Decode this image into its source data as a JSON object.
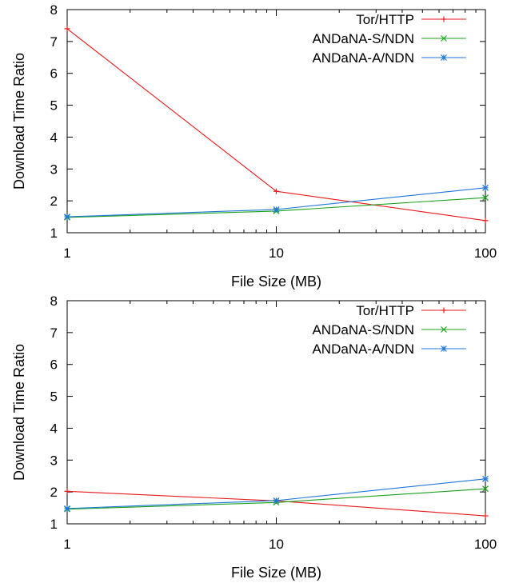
{
  "chart_data": [
    {
      "type": "line",
      "title": "",
      "xlabel": "File Size (MB)",
      "ylabel": "Download Time Ratio",
      "xscale": "log",
      "xlim": [
        1,
        100
      ],
      "ylim": [
        1,
        8
      ],
      "xticks": [
        1,
        10,
        100
      ],
      "xtick_labels": [
        "1",
        "10",
        "100"
      ],
      "yticks": [
        1,
        2,
        3,
        4,
        5,
        6,
        7,
        8
      ],
      "ytick_labels": [
        "1",
        "2",
        "3",
        "4",
        "5",
        "6",
        "7",
        "8"
      ],
      "grid": false,
      "legend_position": "top-right",
      "x": [
        1,
        10,
        100
      ],
      "series": [
        {
          "name": "Tor/HTTP",
          "values": [
            7.4,
            2.3,
            1.38
          ],
          "color": "#e8191b",
          "marker": "plus"
        },
        {
          "name": "ANDaNA-S/NDN",
          "values": [
            1.48,
            1.68,
            2.1
          ],
          "color": "#1aa31a",
          "marker": "cross"
        },
        {
          "name": "ANDaNA-A/NDN",
          "values": [
            1.5,
            1.73,
            2.41
          ],
          "color": "#1f77d9",
          "marker": "star"
        }
      ]
    },
    {
      "type": "line",
      "title": "",
      "xlabel": "File Size (MB)",
      "ylabel": "Download Time Ratio",
      "xscale": "log",
      "xlim": [
        1,
        100
      ],
      "ylim": [
        1,
        8
      ],
      "xticks": [
        1,
        10,
        100
      ],
      "xtick_labels": [
        "1",
        "10",
        "100"
      ],
      "yticks": [
        1,
        2,
        3,
        4,
        5,
        6,
        7,
        8
      ],
      "ytick_labels": [
        "1",
        "2",
        "3",
        "4",
        "5",
        "6",
        "7",
        "8"
      ],
      "grid": false,
      "legend_position": "top-right",
      "x": [
        1,
        10,
        100
      ],
      "series": [
        {
          "name": "Tor/HTTP",
          "values": [
            2.02,
            1.72,
            1.25
          ],
          "color": "#e8191b",
          "marker": "plus"
        },
        {
          "name": "ANDaNA-S/NDN",
          "values": [
            1.46,
            1.67,
            2.1
          ],
          "color": "#1aa31a",
          "marker": "cross"
        },
        {
          "name": "ANDaNA-A/NDN",
          "values": [
            1.48,
            1.73,
            2.41
          ],
          "color": "#1f77d9",
          "marker": "star"
        }
      ]
    }
  ]
}
